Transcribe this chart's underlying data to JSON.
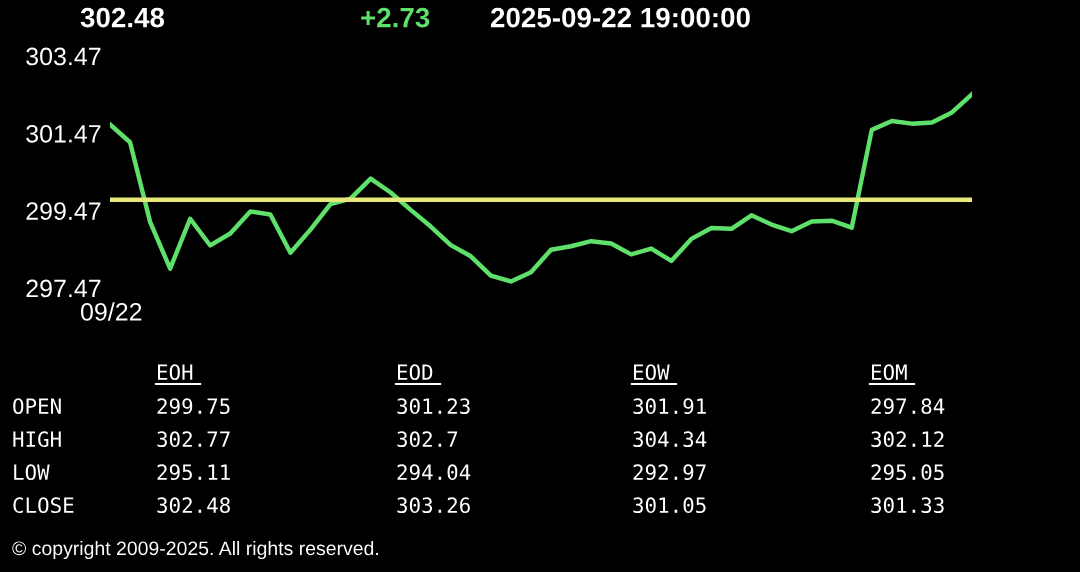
{
  "chart_data": {
    "type": "line",
    "title": "302.48",
    "subtitle": "+2.73",
    "annotations": [
      "2025-09-22 19:00:00",
      "09/22",
      "EOH",
      "EOD",
      "EOW",
      "EOM",
      "OPEN",
      "299.75",
      "301.23",
      "301.91",
      "297.84",
      "HIGH",
      "302.77",
      "302.7",
      "304.34",
      "302.12",
      "LOW",
      "295.11",
      "294.04",
      "292.97",
      "295.05",
      "CLOSE",
      "302.48",
      "303.26",
      "301.05",
      "301.33",
      "© copyright 2009-2025. All rights reserved."
    ],
    "categories": [
      null,
      null,
      null,
      null,
      null,
      null,
      null,
      null,
      null,
      null,
      null,
      null,
      null,
      null,
      null,
      null,
      null,
      null,
      null,
      null,
      null,
      null,
      null,
      null,
      null,
      null,
      null,
      null,
      null,
      null,
      null,
      null,
      null,
      null,
      null,
      null,
      null,
      null,
      null,
      null,
      null,
      null,
      null,
      null
    ],
    "series": [
      {
        "color": "#5ee06a",
        "values": [
          301.7,
          301.24,
          299.18,
          297.97,
          299.26,
          298.57,
          298.88,
          299.45,
          299.37,
          298.38,
          298.98,
          299.64,
          299.78,
          300.3,
          299.94,
          299.49,
          299.06,
          298.58,
          298.29,
          297.79,
          297.64,
          297.88,
          298.46,
          298.55,
          298.68,
          298.62,
          298.34,
          298.49,
          298.17,
          298.74,
          299.02,
          299.0,
          299.35,
          299.11,
          298.94,
          299.19,
          299.21,
          299.03,
          301.56,
          301.79,
          301.72,
          301.75,
          302.01,
          302.48
        ]
      }
    ],
    "ylim": [
      297.47,
      303.47
    ],
    "yticks": [
      297.47,
      299.47,
      301.47,
      303.47
    ],
    "ref_lines": [
      {
        "axis": "y",
        "value": 299.75,
        "color": "#e8e87a"
      }
    ],
    "tick_labels": "y"
  }
}
